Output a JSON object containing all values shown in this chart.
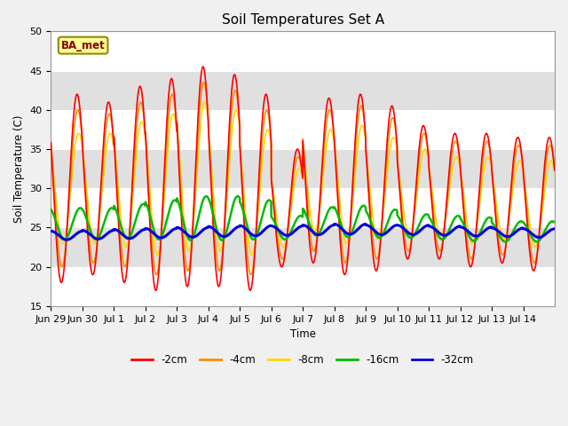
{
  "title": "Soil Temperatures Set A",
  "ylabel": "Soil Temperature (C)",
  "xlabel": "Time",
  "ylim": [
    15,
    50
  ],
  "legend_label": "BA_met",
  "line_colors": {
    "-2cm": "#ff0000",
    "-4cm": "#ff8c00",
    "-8cm": "#ffd700",
    "-16cm": "#00bb00",
    "-32cm": "#0000dd"
  },
  "line_widths": {
    "-2cm": 1.2,
    "-4cm": 1.2,
    "-8cm": 1.2,
    "-16cm": 1.8,
    "-32cm": 2.2
  },
  "background_color": "#f0f0f0",
  "plot_bg_color": "#e8e8e8",
  "band_colors": [
    "#e0e0e0",
    "#d0d0d0"
  ],
  "grid_color": "#ffffff",
  "tick_labels": [
    "Jun 29",
    "Jun 30",
    "Jul 1",
    "Jul 2",
    "Jul 3",
    "Jul 4",
    "Jul 5",
    "Jul 6",
    "Jul 7",
    "Jul 8",
    "Jul 9",
    "Jul 10",
    "Jul 11",
    "Jul 12",
    "Jul 13",
    "Jul 14"
  ],
  "n_days": 16,
  "base_mean": 24.0,
  "amp_2cm": [
    12.0,
    11.0,
    12.5,
    13.5,
    14.0,
    13.5,
    12.5,
    7.5,
    10.5,
    11.5,
    10.5,
    8.5,
    8.0,
    8.5,
    8.0,
    8.5
  ],
  "mean_2cm": [
    30.0,
    30.0,
    30.5,
    30.5,
    31.5,
    31.0,
    29.5,
    27.5,
    31.0,
    30.5,
    30.0,
    29.5,
    29.0,
    28.5,
    28.5,
    28.0
  ],
  "amp_4cm": [
    10.0,
    9.5,
    10.5,
    11.5,
    12.0,
    11.5,
    10.5,
    6.5,
    9.0,
    10.0,
    9.0,
    7.5,
    7.0,
    7.5,
    7.0,
    7.5
  ],
  "mean_4cm": [
    30.0,
    30.0,
    30.5,
    30.5,
    31.5,
    31.0,
    29.5,
    27.5,
    31.0,
    30.5,
    30.0,
    29.5,
    29.0,
    28.5,
    28.5,
    28.0
  ],
  "amp_8cm": [
    7.0,
    7.0,
    8.0,
    9.0,
    9.5,
    9.0,
    8.0,
    5.0,
    6.5,
    7.5,
    6.5,
    5.5,
    5.0,
    5.5,
    5.0,
    5.5
  ],
  "mean_8cm": [
    30.0,
    30.0,
    30.5,
    30.5,
    31.5,
    31.0,
    29.5,
    27.5,
    31.0,
    30.5,
    30.0,
    29.5,
    29.0,
    28.5,
    28.5,
    28.0
  ],
  "amp_16cm": [
    2.0,
    2.0,
    2.2,
    2.5,
    2.8,
    2.8,
    2.5,
    1.5,
    1.8,
    2.0,
    1.8,
    1.5,
    1.5,
    1.5,
    1.3,
    1.3
  ],
  "mean_16cm": [
    25.5,
    25.5,
    25.8,
    26.0,
    26.2,
    26.2,
    26.0,
    25.0,
    25.8,
    25.8,
    25.5,
    25.2,
    25.0,
    24.8,
    24.5,
    24.5
  ],
  "amp_32cm": [
    0.55,
    0.55,
    0.58,
    0.6,
    0.62,
    0.65,
    0.65,
    0.6,
    0.62,
    0.65,
    0.62,
    0.6,
    0.58,
    0.58,
    0.55,
    0.55
  ],
  "mean_32cm": [
    24.0,
    24.1,
    24.2,
    24.3,
    24.4,
    24.5,
    24.6,
    24.6,
    24.7,
    24.8,
    24.7,
    24.7,
    24.6,
    24.5,
    24.4,
    24.3
  ],
  "phase_2cm": 0.58,
  "phase_4cm": 0.6,
  "phase_8cm": 0.63,
  "phase_16cm": 0.68,
  "phase_32cm": 0.75
}
